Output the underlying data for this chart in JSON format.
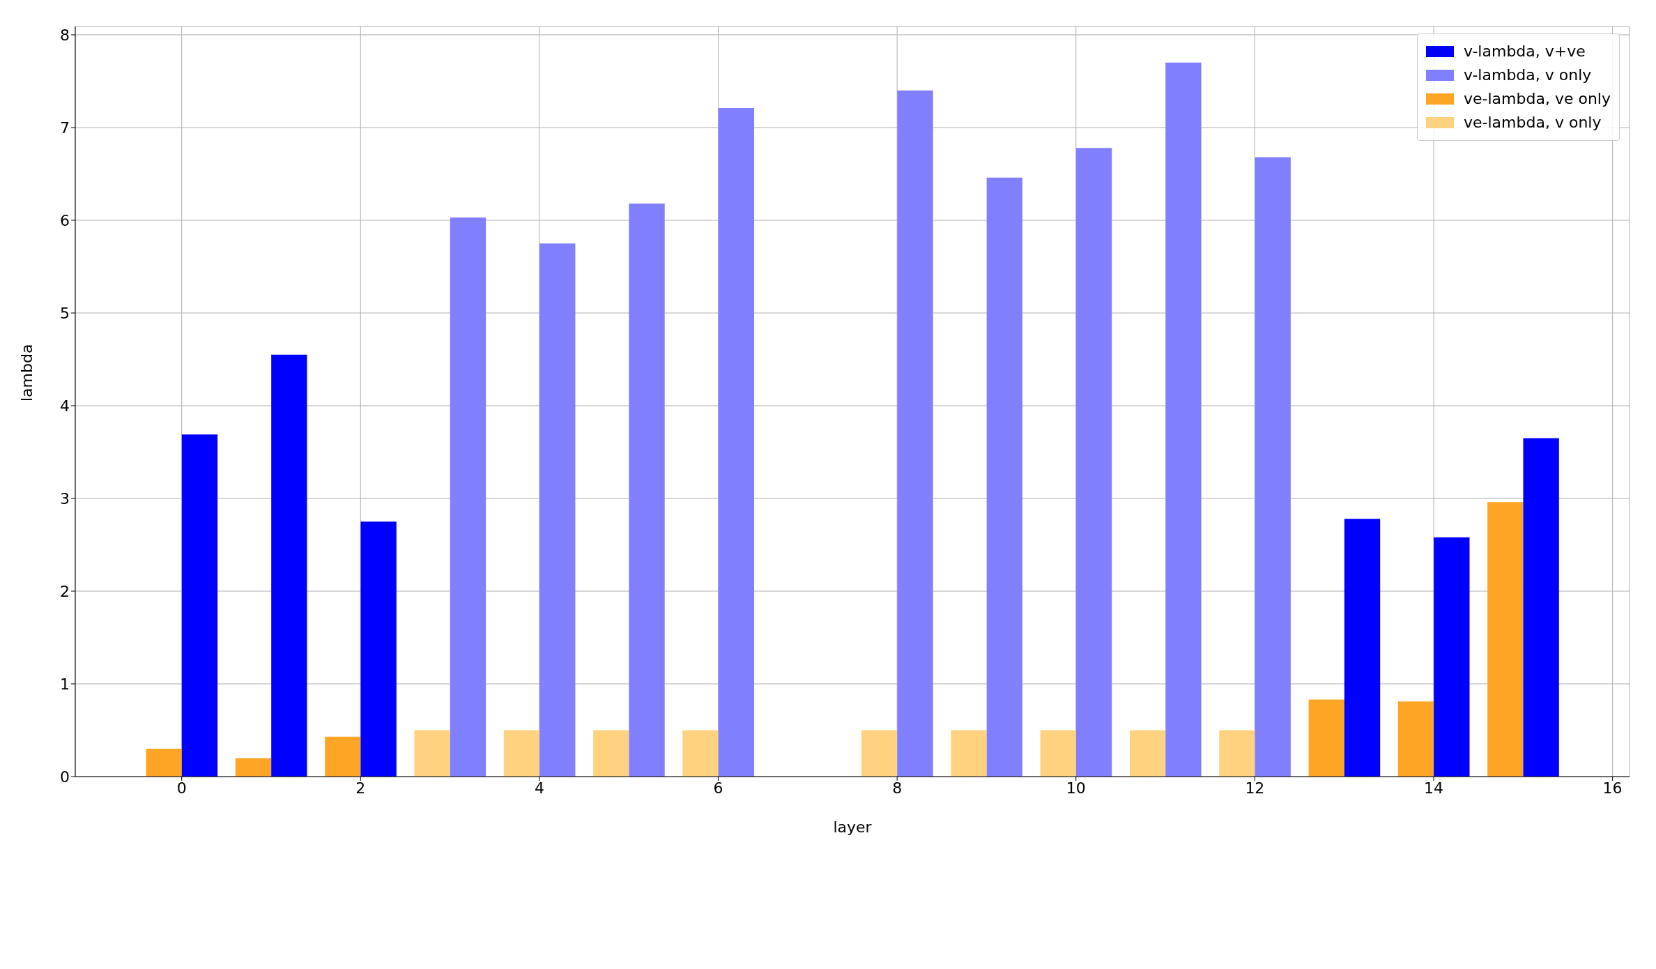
{
  "chart_data": {
    "type": "bar",
    "xlabel": "layer",
    "ylabel": "lambda",
    "x": [
      0,
      1,
      2,
      3,
      4,
      5,
      6,
      7,
      8,
      9,
      10,
      11,
      12,
      13,
      14,
      15
    ],
    "series": [
      {
        "name": "v-lambda, v+ve",
        "color": "#0000ff",
        "values": [
          3.69,
          4.55,
          2.75,
          null,
          null,
          null,
          null,
          null,
          null,
          null,
          null,
          null,
          null,
          2.78,
          2.58,
          3.65
        ]
      },
      {
        "name": "v-lambda, v only",
        "color": "#8080ff",
        "values": [
          null,
          null,
          null,
          6.03,
          5.75,
          6.18,
          7.21,
          null,
          7.4,
          6.46,
          6.78,
          7.7,
          6.68,
          null,
          null,
          null
        ]
      },
      {
        "name": "ve-lambda, ve only",
        "color": "#ffa526",
        "values": [
          0.3,
          0.2,
          0.43,
          null,
          null,
          null,
          null,
          null,
          null,
          null,
          null,
          null,
          null,
          0.83,
          0.81,
          2.96
        ]
      },
      {
        "name": "ve-lambda, v only",
        "color": "#ffd280",
        "values": [
          null,
          null,
          null,
          0.5,
          0.5,
          0.5,
          0.5,
          null,
          0.5,
          0.5,
          0.5,
          0.5,
          0.5,
          null,
          null,
          null
        ]
      }
    ],
    "xlim": [
      -1.19,
      16.19
    ],
    "xticks": [
      0,
      2,
      4,
      6,
      8,
      10,
      12,
      14,
      16
    ],
    "ylim": [
      0,
      8.09
    ],
    "yticks": [
      0,
      1,
      2,
      3,
      4,
      5,
      6,
      7,
      8
    ],
    "grid": true,
    "legend": "top right"
  }
}
